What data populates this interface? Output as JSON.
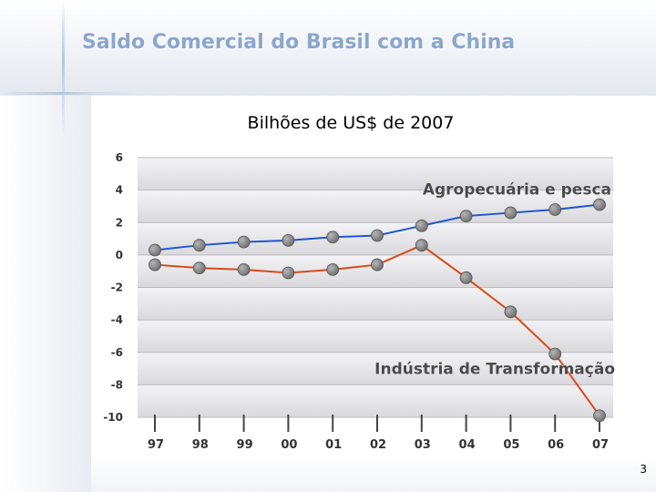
{
  "title": "Saldo Comercial do Brasil com a China",
  "page_number": "3",
  "chart_data": {
    "type": "line",
    "title": "Bilhões de US$ de 2007",
    "xlabel": "",
    "ylabel": "",
    "categories": [
      "97",
      "98",
      "99",
      "00",
      "01",
      "02",
      "03",
      "04",
      "05",
      "06",
      "07"
    ],
    "yticks": [
      "6",
      "4",
      "2",
      "0",
      "-2",
      "-4",
      "-6",
      "-8",
      "-10"
    ],
    "ylim": [
      -10,
      6
    ],
    "grid": true,
    "series": [
      {
        "name": "Agropecuária e pesca",
        "color": "#2255cc",
        "values": [
          0.3,
          0.6,
          0.8,
          0.9,
          1.1,
          1.2,
          1.8,
          2.4,
          2.6,
          2.8,
          3.1
        ]
      },
      {
        "name": "Indústria de Transformação",
        "color": "#d94a1a",
        "values": [
          -0.6,
          -0.8,
          -0.9,
          -1.1,
          -0.9,
          -0.6,
          0.6,
          -1.4,
          -3.5,
          -6.1,
          -9.9
        ]
      }
    ],
    "colors": {
      "marker_fill": "#6e6e6e",
      "band_light": "#f3f3f5",
      "band_dark": "#d9d9dd",
      "label": "#4a4a4a"
    }
  }
}
